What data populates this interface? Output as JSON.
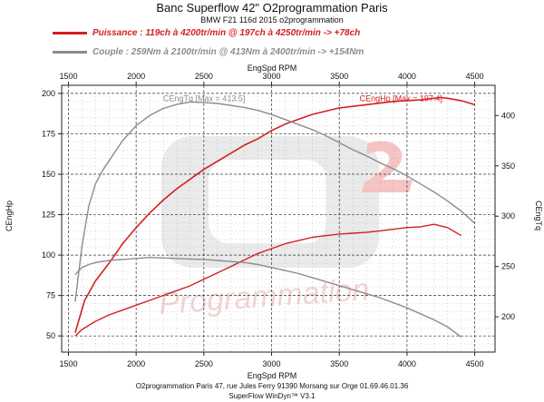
{
  "header": {
    "title": "Banc Superflow 42\" O2programmation Paris",
    "subtitle": "BMW F21 116d 2015 o2programmation"
  },
  "legend": [
    {
      "text": "Puissance : 119ch à 4200tr/min @ 197ch à 4250tr/min  -> +78ch",
      "color": "#d42020"
    },
    {
      "text": "Couple :  259Nm à 2100tr/min @ 413Nm à 2400tr/min -> +154Nm",
      "color": "#8c8c8c"
    }
  ],
  "footer": {
    "line1": "O2programmation Paris 47, rue Jules Ferry 91390 Morsang sur Orge 01.69.46.01.36",
    "line2": "SuperFlow WinDyn™ V3.1"
  },
  "watermark": {
    "text": "Programmation"
  },
  "chart_data": {
    "type": "line",
    "xlabel": "EngSpd RPM",
    "ylabel_left": "CEngHp",
    "ylabel_right": "CEngTq",
    "xlim": [
      1450,
      4650
    ],
    "ylim_left": [
      40,
      205
    ],
    "ylim_right": [
      165,
      430
    ],
    "x_ticks": [
      1500,
      2000,
      2500,
      3000,
      3500,
      4000,
      4500
    ],
    "y_ticks_left": [
      50,
      75,
      100,
      125,
      150,
      175,
      200
    ],
    "y_ticks_right": [
      200,
      250,
      300,
      350,
      400
    ],
    "grid": true,
    "annotations": [
      {
        "text": "CEngTq [Max = 413.5]",
        "x": 2200,
        "y": 197,
        "axis": "left",
        "color": "#8c8c8c"
      },
      {
        "text": "CEngHp [Max = 197.4]",
        "x": 3650,
        "y": 197,
        "axis": "left",
        "color": "#d42020"
      }
    ],
    "series": [
      {
        "axis": "left",
        "color": "#d42020",
        "width": 1.6,
        "x": [
          1550,
          1620,
          1700,
          1800,
          1900,
          2000,
          2100,
          2200,
          2300,
          2400,
          2500,
          2600,
          2700,
          2800,
          2900,
          3000,
          3100,
          3200,
          3300,
          3400,
          3500,
          3600,
          3700,
          3800,
          3900,
          4000,
          4100,
          4200,
          4250,
          4300,
          4400,
          4500
        ],
        "y": [
          52,
          72,
          84,
          95,
          107,
          117,
          126,
          134,
          141,
          147,
          153,
          158,
          163,
          168,
          172,
          177,
          181,
          184,
          187,
          189,
          191,
          192,
          193,
          194,
          195,
          195.5,
          196,
          197,
          197.4,
          197,
          195.5,
          193
        ]
      },
      {
        "axis": "right",
        "color": "#8c8c8c",
        "width": 1.4,
        "x": [
          1550,
          1600,
          1650,
          1700,
          1750,
          1800,
          1900,
          2000,
          2100,
          2200,
          2300,
          2400,
          2500,
          2600,
          2700,
          2800,
          2900,
          3000,
          3100,
          3200,
          3300,
          3400,
          3500,
          3600,
          3700,
          3800,
          3900,
          4000,
          4100,
          4200,
          4300,
          4400,
          4500
        ],
        "y": [
          215,
          270,
          310,
          332,
          345,
          355,
          375,
          390,
          400,
          407,
          411,
          413.5,
          413,
          412,
          410,
          408,
          405,
          401,
          396,
          391,
          386,
          380,
          373,
          366,
          360,
          353,
          347,
          340,
          332,
          324,
          315,
          305,
          293
        ]
      },
      {
        "axis": "left",
        "color": "#d42020",
        "width": 1.4,
        "x": [
          1550,
          1600,
          1700,
          1800,
          1900,
          2000,
          2100,
          2200,
          2300,
          2400,
          2500,
          2600,
          2700,
          2800,
          2900,
          3000,
          3100,
          3200,
          3300,
          3400,
          3500,
          3600,
          3700,
          3800,
          3900,
          4000,
          4100,
          4200,
          4300,
          4400
        ],
        "y": [
          50,
          54,
          59,
          63,
          66,
          69,
          72,
          75,
          78,
          81,
          85,
          89,
          93,
          97,
          101,
          104,
          107,
          109,
          111,
          112,
          113,
          113.5,
          114,
          115,
          116,
          117,
          117.5,
          119,
          117,
          112
        ]
      },
      {
        "axis": "right",
        "color": "#8c8c8c",
        "width": 1.4,
        "x": [
          1550,
          1600,
          1650,
          1700,
          1800,
          1900,
          2000,
          2100,
          2200,
          2300,
          2400,
          2500,
          2600,
          2700,
          2800,
          2900,
          3000,
          3100,
          3200,
          3300,
          3400,
          3500,
          3600,
          3700,
          3800,
          3900,
          4000,
          4100,
          4200,
          4300,
          4400
        ],
        "y": [
          242,
          249,
          252,
          254,
          256,
          257,
          258,
          259,
          258.5,
          258,
          257.5,
          257,
          256,
          255,
          254,
          252,
          249,
          246,
          243,
          239,
          235,
          231,
          227,
          223,
          219,
          214,
          209,
          203,
          197,
          190,
          180
        ]
      }
    ]
  }
}
